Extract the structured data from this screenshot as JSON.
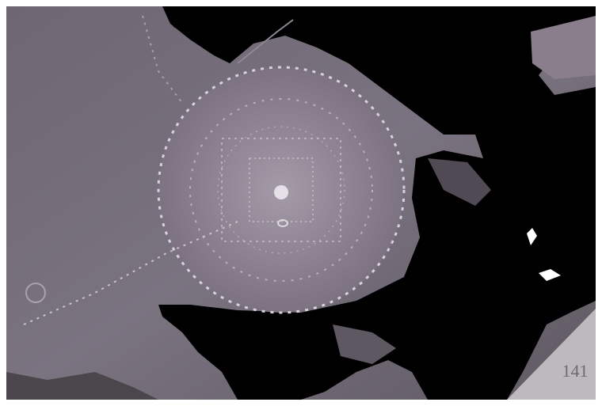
{
  "image": {
    "page_number": "141"
  }
}
